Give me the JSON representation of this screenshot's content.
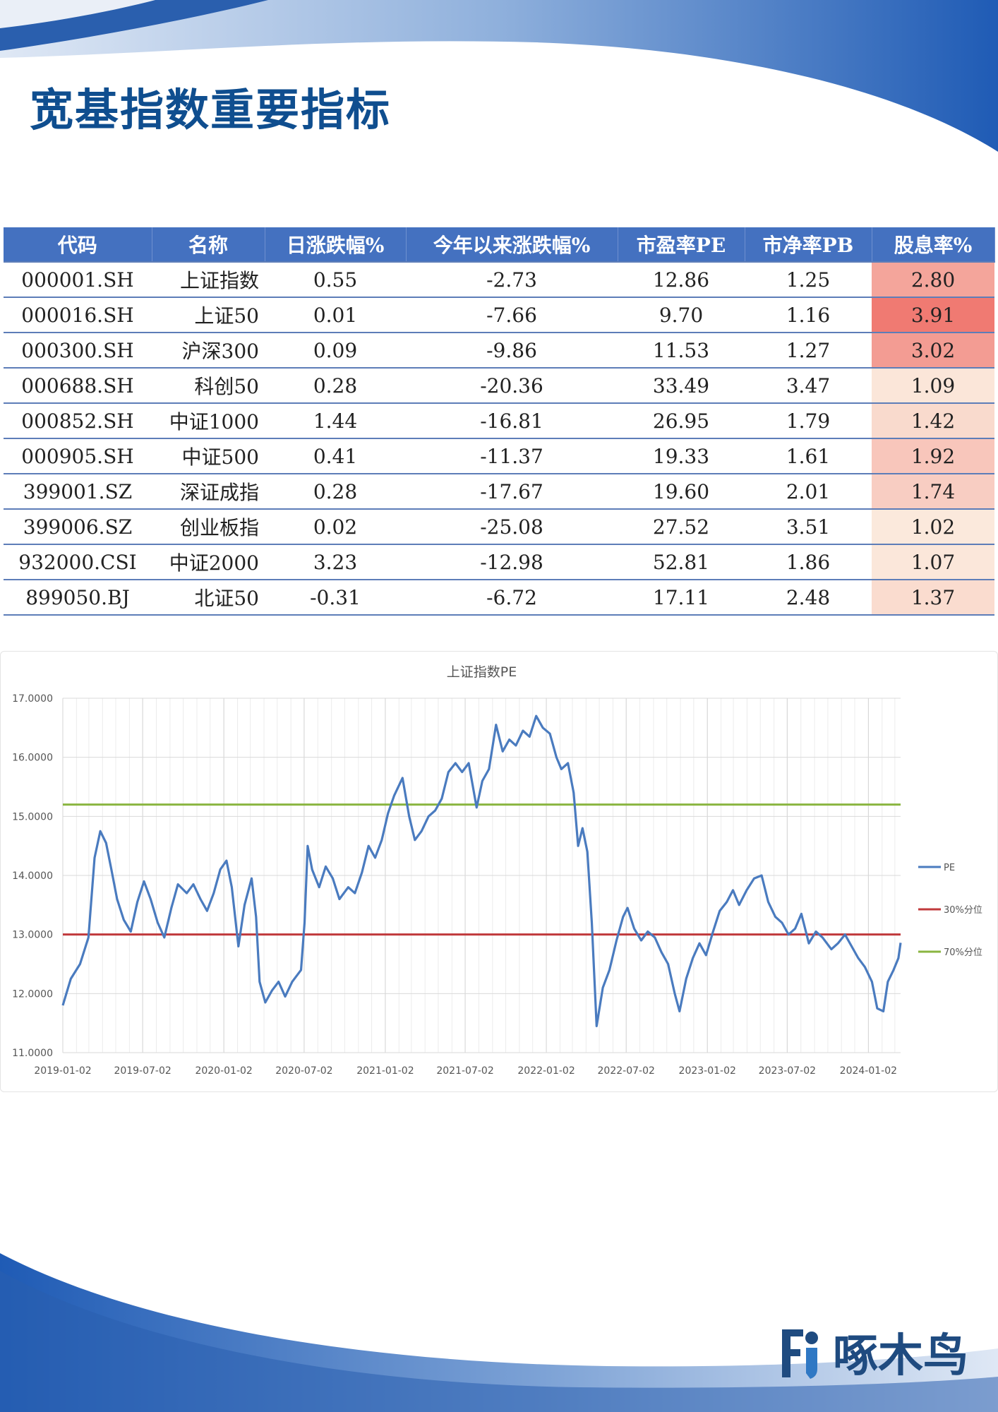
{
  "page": {
    "title": "宽基指数重要指标",
    "logo_text": "啄木鸟"
  },
  "table": {
    "headers": [
      "代码",
      "名称",
      "日涨跌幅%",
      "今年以来涨跌幅%",
      "市盈率PE",
      "市净率PB",
      "股息率%"
    ],
    "rows": [
      {
        "code": "000001.SH",
        "name": "上证指数",
        "day": "0.55",
        "ytd": "-2.73",
        "pe": "12.86",
        "pb": "1.25",
        "dy": "2.80"
      },
      {
        "code": "000016.SH",
        "name": "上证50",
        "day": "0.01",
        "ytd": "-7.66",
        "pe": "9.70",
        "pb": "1.16",
        "dy": "3.91"
      },
      {
        "code": "000300.SH",
        "name": "沪深300",
        "day": "0.09",
        "ytd": "-9.86",
        "pe": "11.53",
        "pb": "1.27",
        "dy": "3.02"
      },
      {
        "code": "000688.SH",
        "name": "科创50",
        "day": "0.28",
        "ytd": "-20.36",
        "pe": "33.49",
        "pb": "3.47",
        "dy": "1.09"
      },
      {
        "code": "000852.SH",
        "name": "中证1000",
        "day": "1.44",
        "ytd": "-16.81",
        "pe": "26.95",
        "pb": "1.79",
        "dy": "1.42"
      },
      {
        "code": "000905.SH",
        "name": "中证500",
        "day": "0.41",
        "ytd": "-11.37",
        "pe": "19.33",
        "pb": "1.61",
        "dy": "1.92"
      },
      {
        "code": "399001.SZ",
        "name": "深证成指",
        "day": "0.28",
        "ytd": "-17.67",
        "pe": "19.60",
        "pb": "2.01",
        "dy": "1.74"
      },
      {
        "code": "399006.SZ",
        "name": "创业板指",
        "day": "0.02",
        "ytd": "-25.08",
        "pe": "27.52",
        "pb": "3.51",
        "dy": "1.02"
      },
      {
        "code": "932000.CSI",
        "name": "中证2000",
        "day": "3.23",
        "ytd": "-12.98",
        "pe": "52.81",
        "pb": "1.86",
        "dy": "1.07"
      },
      {
        "code": "899050.BJ",
        "name": "北证50",
        "day": "-0.31",
        "ytd": "-6.72",
        "pe": "17.11",
        "pb": "2.48",
        "dy": "1.37"
      }
    ],
    "colors": {
      "header_bg": "#4471c0",
      "positive": "#d42a2a",
      "negative": "#2c9a2c",
      "heat_low": "#fbe9dc",
      "heat_high": "#f07a72"
    }
  },
  "chart_data": {
    "type": "line",
    "title": "上证指数PE",
    "xlabel": "",
    "ylabel": "",
    "ylim": [
      11,
      17
    ],
    "y_ticks": [
      "11.0000",
      "12.0000",
      "13.0000",
      "14.0000",
      "15.0000",
      "16.0000",
      "17.0000"
    ],
    "x_ticks": [
      "2019-01-02",
      "2019-07-02",
      "2020-01-02",
      "2020-07-02",
      "2021-01-02",
      "2021-07-02",
      "2022-01-02",
      "2022-07-02",
      "2023-01-02",
      "2023-07-02",
      "2024-01-02"
    ],
    "xlim": [
      "2019-01-02",
      "2024-03-15"
    ],
    "grid": true,
    "legend_position": "right",
    "series": [
      {
        "name": "PE",
        "color": "#4a7bbf",
        "points": [
          [
            "2019-01-02",
            11.8
          ],
          [
            "2019-01-20",
            12.25
          ],
          [
            "2019-02-10",
            12.5
          ],
          [
            "2019-03-01",
            12.95
          ],
          [
            "2019-03-15",
            14.3
          ],
          [
            "2019-03-28",
            14.75
          ],
          [
            "2019-04-10",
            14.55
          ],
          [
            "2019-04-22",
            14.1
          ],
          [
            "2019-05-05",
            13.6
          ],
          [
            "2019-05-20",
            13.25
          ],
          [
            "2019-06-05",
            13.05
          ],
          [
            "2019-06-20",
            13.55
          ],
          [
            "2019-07-05",
            13.9
          ],
          [
            "2019-07-20",
            13.6
          ],
          [
            "2019-08-05",
            13.2
          ],
          [
            "2019-08-20",
            12.95
          ],
          [
            "2019-09-05",
            13.45
          ],
          [
            "2019-09-20",
            13.85
          ],
          [
            "2019-10-10",
            13.7
          ],
          [
            "2019-10-25",
            13.85
          ],
          [
            "2019-11-10",
            13.6
          ],
          [
            "2019-11-25",
            13.4
          ],
          [
            "2019-12-10",
            13.7
          ],
          [
            "2019-12-25",
            14.1
          ],
          [
            "2020-01-08",
            14.25
          ],
          [
            "2020-01-20",
            13.8
          ],
          [
            "2020-02-04",
            12.8
          ],
          [
            "2020-02-18",
            13.5
          ],
          [
            "2020-03-05",
            13.95
          ],
          [
            "2020-03-15",
            13.3
          ],
          [
            "2020-03-23",
            12.2
          ],
          [
            "2020-04-05",
            11.85
          ],
          [
            "2020-04-20",
            12.05
          ],
          [
            "2020-05-05",
            12.2
          ],
          [
            "2020-05-20",
            11.95
          ],
          [
            "2020-06-05",
            12.2
          ],
          [
            "2020-06-25",
            12.4
          ],
          [
            "2020-07-03",
            13.2
          ],
          [
            "2020-07-10",
            14.5
          ],
          [
            "2020-07-20",
            14.1
          ],
          [
            "2020-08-05",
            13.8
          ],
          [
            "2020-08-20",
            14.15
          ],
          [
            "2020-09-05",
            13.95
          ],
          [
            "2020-09-20",
            13.6
          ],
          [
            "2020-10-10",
            13.8
          ],
          [
            "2020-10-25",
            13.7
          ],
          [
            "2020-11-10",
            14.05
          ],
          [
            "2020-11-25",
            14.5
          ],
          [
            "2020-12-10",
            14.3
          ],
          [
            "2020-12-25",
            14.6
          ],
          [
            "2021-01-08",
            15.05
          ],
          [
            "2021-01-22",
            15.35
          ],
          [
            "2021-02-10",
            15.65
          ],
          [
            "2021-02-25",
            15.0
          ],
          [
            "2021-03-10",
            14.6
          ],
          [
            "2021-03-25",
            14.75
          ],
          [
            "2021-04-10",
            15.0
          ],
          [
            "2021-04-25",
            15.1
          ],
          [
            "2021-05-10",
            15.3
          ],
          [
            "2021-05-25",
            15.75
          ],
          [
            "2021-06-10",
            15.9
          ],
          [
            "2021-06-25",
            15.75
          ],
          [
            "2021-07-10",
            15.9
          ],
          [
            "2021-07-28",
            15.15
          ],
          [
            "2021-08-10",
            15.6
          ],
          [
            "2021-08-25",
            15.8
          ],
          [
            "2021-09-10",
            16.55
          ],
          [
            "2021-09-25",
            16.1
          ],
          [
            "2021-10-10",
            16.3
          ],
          [
            "2021-10-25",
            16.2
          ],
          [
            "2021-11-10",
            16.45
          ],
          [
            "2021-11-25",
            16.35
          ],
          [
            "2021-12-10",
            16.7
          ],
          [
            "2021-12-25",
            16.5
          ],
          [
            "2022-01-10",
            16.4
          ],
          [
            "2022-01-25",
            16.0
          ],
          [
            "2022-02-05",
            15.8
          ],
          [
            "2022-02-20",
            15.9
          ],
          [
            "2022-03-05",
            15.4
          ],
          [
            "2022-03-15",
            14.5
          ],
          [
            "2022-03-25",
            14.8
          ],
          [
            "2022-04-05",
            14.4
          ],
          [
            "2022-04-15",
            13.2
          ],
          [
            "2022-04-26",
            11.45
          ],
          [
            "2022-05-10",
            12.1
          ],
          [
            "2022-05-25",
            12.4
          ],
          [
            "2022-06-10",
            12.9
          ],
          [
            "2022-06-25",
            13.3
          ],
          [
            "2022-07-05",
            13.45
          ],
          [
            "2022-07-20",
            13.1
          ],
          [
            "2022-08-05",
            12.9
          ],
          [
            "2022-08-20",
            13.05
          ],
          [
            "2022-09-05",
            12.95
          ],
          [
            "2022-09-20",
            12.7
          ],
          [
            "2022-10-05",
            12.5
          ],
          [
            "2022-10-20",
            12.0
          ],
          [
            "2022-10-31",
            11.7
          ],
          [
            "2022-11-15",
            12.25
          ],
          [
            "2022-11-30",
            12.6
          ],
          [
            "2022-12-15",
            12.85
          ],
          [
            "2022-12-30",
            12.65
          ],
          [
            "2023-01-15",
            13.05
          ],
          [
            "2023-01-30",
            13.4
          ],
          [
            "2023-02-15",
            13.55
          ],
          [
            "2023-03-01",
            13.75
          ],
          [
            "2023-03-15",
            13.5
          ],
          [
            "2023-04-01",
            13.75
          ],
          [
            "2023-04-18",
            13.95
          ],
          [
            "2023-05-05",
            14.0
          ],
          [
            "2023-05-20",
            13.55
          ],
          [
            "2023-06-05",
            13.3
          ],
          [
            "2023-06-20",
            13.2
          ],
          [
            "2023-07-05",
            13.0
          ],
          [
            "2023-07-20",
            13.1
          ],
          [
            "2023-08-03",
            13.35
          ],
          [
            "2023-08-20",
            12.85
          ],
          [
            "2023-09-05",
            13.05
          ],
          [
            "2023-09-20",
            12.95
          ],
          [
            "2023-10-10",
            12.75
          ],
          [
            "2023-10-25",
            12.85
          ],
          [
            "2023-11-10",
            13.0
          ],
          [
            "2023-11-25",
            12.8
          ],
          [
            "2023-12-10",
            12.6
          ],
          [
            "2023-12-25",
            12.45
          ],
          [
            "2024-01-10",
            12.2
          ],
          [
            "2024-01-22",
            11.75
          ],
          [
            "2024-02-05",
            11.7
          ],
          [
            "2024-02-15",
            12.2
          ],
          [
            "2024-02-28",
            12.4
          ],
          [
            "2024-03-10",
            12.6
          ],
          [
            "2024-03-15",
            12.86
          ]
        ]
      },
      {
        "name": "30%分位",
        "color": "#c0393b",
        "value": 13.0
      },
      {
        "name": "70%分位",
        "color": "#8ab540",
        "value": 15.2
      }
    ]
  }
}
